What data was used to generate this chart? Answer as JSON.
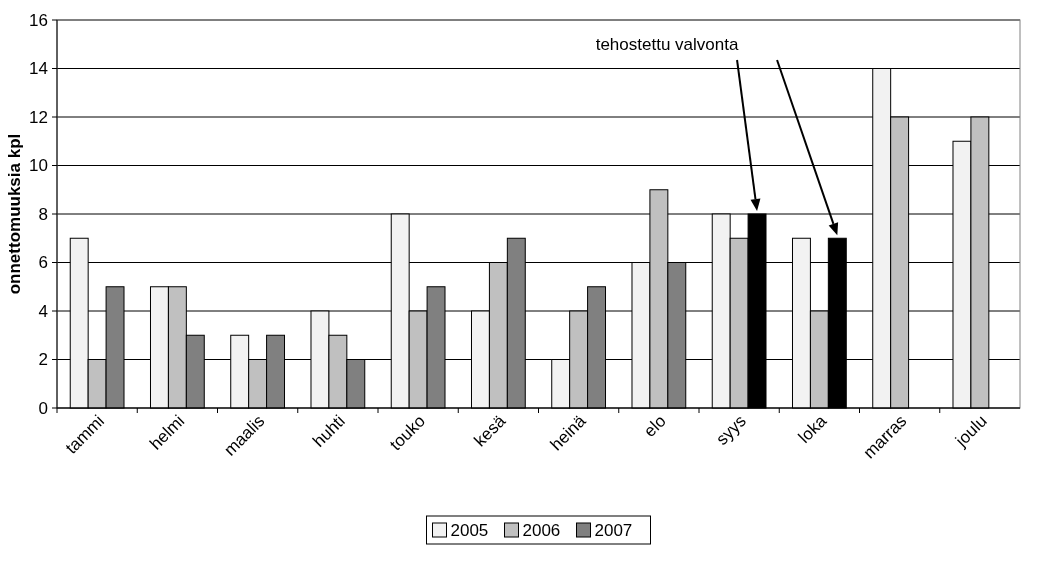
{
  "chart_data": {
    "type": "bar",
    "ylabel": "onnettomuuksia kpl",
    "categories": [
      "tammi",
      "helmi",
      "maalis",
      "huhti",
      "touko",
      "kesä",
      "heinä",
      "elo",
      "syys",
      "loka",
      "marras",
      "joulu"
    ],
    "series": [
      {
        "name": "2005",
        "color": "#f2f2f2",
        "values": [
          7,
          5,
          3,
          4,
          8,
          4,
          2,
          6,
          8,
          7,
          14,
          11
        ]
      },
      {
        "name": "2006",
        "color": "#c0c0c0",
        "values": [
          2,
          5,
          2,
          3,
          4,
          6,
          4,
          9,
          7,
          4,
          12,
          12
        ]
      },
      {
        "name": "2007",
        "color": "#808080",
        "colors": [
          "#808080",
          "#808080",
          "#808080",
          "#808080",
          "#808080",
          "#808080",
          "#808080",
          "#808080",
          "#000000",
          "#000000",
          null,
          null
        ],
        "values": [
          5,
          3,
          3,
          2,
          5,
          7,
          5,
          6,
          8,
          7,
          null,
          null
        ]
      }
    ],
    "ylim": [
      0,
      16
    ],
    "yticks": [
      0,
      2,
      4,
      6,
      8,
      10,
      12,
      14,
      16
    ],
    "grid": "y",
    "legend": "bottom",
    "annotations": [
      "tehostettu valvonta"
    ]
  }
}
